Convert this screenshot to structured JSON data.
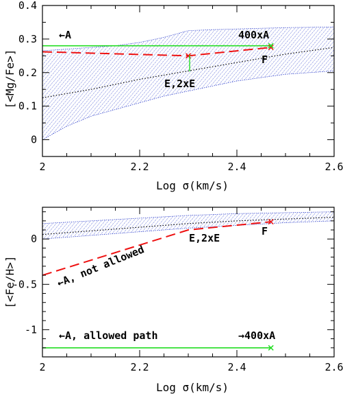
{
  "chart_data": [
    {
      "type": "line",
      "xlabel": "Log σ(km/s)",
      "ylabel": "[<Mg/Fe>]",
      "xlim": [
        2.0,
        2.6
      ],
      "ylim": [
        -0.05,
        0.4
      ],
      "x_ticks": [
        "2",
        "2.2",
        "2.4",
        "2.6"
      ],
      "y_ticks": [
        "0",
        "0.1",
        "0.2",
        "0.3",
        "0.4"
      ],
      "band": {
        "x": [
          2.0,
          2.05,
          2.1,
          2.15,
          2.2,
          2.25,
          2.3,
          2.35,
          2.4,
          2.45,
          2.5,
          2.55,
          2.6
        ],
        "upper": [
          0.265,
          0.27,
          0.275,
          0.28,
          0.29,
          0.305,
          0.325,
          0.328,
          0.33,
          0.332,
          0.334,
          0.335,
          0.336
        ],
        "lower": [
          0.0,
          0.04,
          0.07,
          0.09,
          0.11,
          0.13,
          0.145,
          0.16,
          0.175,
          0.185,
          0.195,
          0.2,
          0.205
        ],
        "color": "#3344cc"
      },
      "series": [
        {
          "values_x": [
            2.0,
            2.1,
            2.2,
            2.3,
            2.4,
            2.5,
            2.6
          ],
          "values_y": [
            0.125,
            0.15,
            0.18,
            0.205,
            0.23,
            0.255,
            0.275
          ],
          "color": "#000000",
          "style": "dotted"
        },
        {
          "values_x": [
            2.0,
            2.3,
            2.47
          ],
          "values_y": [
            0.262,
            0.25,
            0.275
          ],
          "color": "#ee1111",
          "style": "dashed"
        },
        {
          "values_x": [
            2.0,
            2.47
          ],
          "values_y": [
            0.28,
            0.28
          ],
          "color": "#22dd22",
          "style": "solid"
        }
      ],
      "markers": [
        {
          "x": 2.3,
          "y": 0.25,
          "color": "#ee1111",
          "symbol": "x"
        },
        {
          "x": 2.47,
          "y": 0.275,
          "color": "#ee1111",
          "symbol": "x"
        },
        {
          "x": 2.47,
          "y": 0.28,
          "color": "#22dd22",
          "symbol": "x"
        }
      ],
      "annotations": {
        "a": "←A",
        "x400a": "400xA",
        "f": "F",
        "e2xe": "E,2xE"
      }
    },
    {
      "type": "line",
      "xlabel": "Log σ(km/s)",
      "ylabel": "[<Fe/H>]",
      "xlim": [
        2.0,
        2.6
      ],
      "ylim": [
        -1.3,
        0.35
      ],
      "x_ticks": [
        "2",
        "2.2",
        "2.4",
        "2.6"
      ],
      "y_ticks": [
        "-1",
        "-0.5",
        "0"
      ],
      "band": {
        "x": [
          2.0,
          2.1,
          2.2,
          2.3,
          2.4,
          2.5,
          2.6
        ],
        "upper": [
          0.17,
          0.2,
          0.23,
          0.26,
          0.28,
          0.29,
          0.3
        ],
        "lower": [
          0.0,
          0.04,
          0.08,
          0.12,
          0.15,
          0.18,
          0.2
        ],
        "color": "#3344cc"
      },
      "series": [
        {
          "values_x": [
            2.0,
            2.1,
            2.2,
            2.3,
            2.4,
            2.5,
            2.6
          ],
          "values_y": [
            0.05,
            0.09,
            0.13,
            0.17,
            0.2,
            0.22,
            0.24
          ],
          "color": "#000000",
          "style": "dotted"
        },
        {
          "values_x": [
            2.0,
            2.3,
            2.47
          ],
          "values_y": [
            -0.4,
            0.1,
            0.19
          ],
          "color": "#ee1111",
          "style": "dashed"
        },
        {
          "values_x": [
            2.0,
            2.47
          ],
          "values_y": [
            -1.2,
            -1.2
          ],
          "color": "#22dd22",
          "style": "solid"
        }
      ],
      "markers": [
        {
          "x": 2.47,
          "y": 0.19,
          "color": "#ee1111",
          "symbol": "x"
        },
        {
          "x": 2.47,
          "y": -1.2,
          "color": "#22dd22",
          "symbol": "x"
        }
      ],
      "annotations": {
        "e2xe": "E,2xE",
        "f": "F",
        "a_not_allowed": "←A, not allowed",
        "a_allowed": "←A, allowed path",
        "x400a": "→400xA"
      }
    }
  ]
}
